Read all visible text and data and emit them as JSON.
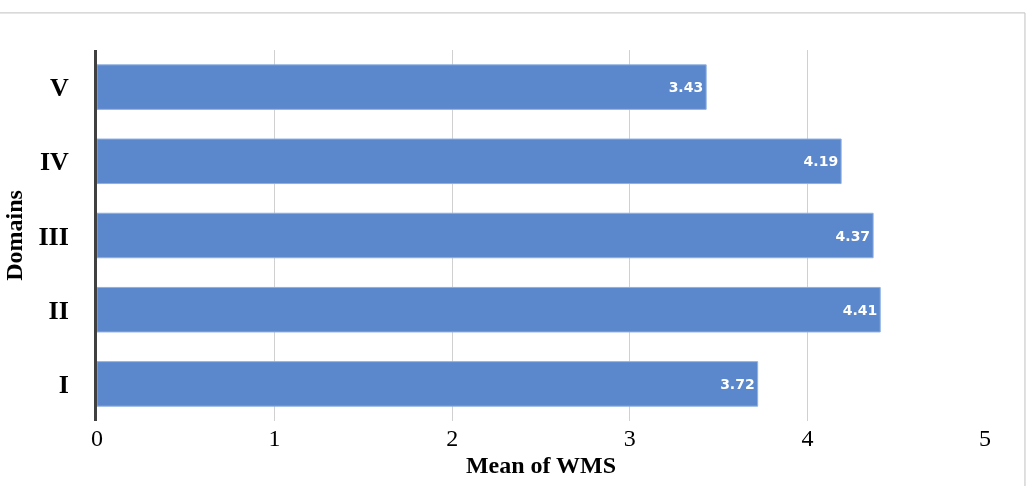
{
  "chart_data": {
    "type": "bar",
    "orientation": "horizontal",
    "xlabel": "Mean of WMS",
    "ylabel": "Domains",
    "categories": [
      "V",
      "IV",
      "III",
      "II",
      "I"
    ],
    "values": [
      3.43,
      4.19,
      4.37,
      4.41,
      3.72
    ],
    "color": "#5b87cc",
    "xlim": [
      0,
      5
    ],
    "xticks": [
      0,
      1,
      2,
      3,
      4,
      5
    ],
    "grid": "x",
    "data_labels": true,
    "legend": false
  }
}
